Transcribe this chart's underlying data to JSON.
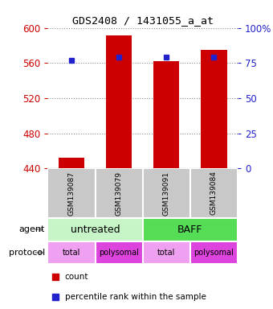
{
  "title": "GDS2408 / 1431055_a_at",
  "samples": [
    "GSM139087",
    "GSM139079",
    "GSM139091",
    "GSM139084"
  ],
  "bar_values": [
    452,
    591,
    562,
    575
  ],
  "percentile_values": [
    77,
    79,
    79,
    79
  ],
  "ylim_left": [
    440,
    600
  ],
  "ylim_right": [
    0,
    100
  ],
  "yticks_left": [
    440,
    480,
    520,
    560,
    600
  ],
  "yticks_right": [
    0,
    25,
    50,
    75,
    100
  ],
  "ytick_labels_right": [
    "0",
    "25",
    "50",
    "75",
    "100%"
  ],
  "bar_color": "#cc0000",
  "dot_color": "#2222cc",
  "bar_width": 0.55,
  "agent_groups": [
    {
      "label": "untreated",
      "color": "#c8f5c8",
      "cols": [
        0,
        1
      ]
    },
    {
      "label": "BAFF",
      "color": "#55dd55",
      "cols": [
        2,
        3
      ]
    }
  ],
  "protocol_cells": [
    {
      "label": "total",
      "color": "#f0a0f0",
      "col": 0
    },
    {
      "label": "polysomal",
      "color": "#dd44dd",
      "col": 1
    },
    {
      "label": "total",
      "color": "#f0a0f0",
      "col": 2
    },
    {
      "label": "polysomal",
      "color": "#dd44dd",
      "col": 3
    }
  ],
  "legend_items": [
    {
      "color": "#cc0000",
      "label": "count"
    },
    {
      "color": "#2222cc",
      "label": "percentile rank within the sample"
    }
  ],
  "grid_color": "#888888",
  "sample_box_color": "#c8c8c8",
  "left_tick_color": "#cc0000",
  "right_tick_color": "#2222cc",
  "arrow_color": "#999999"
}
